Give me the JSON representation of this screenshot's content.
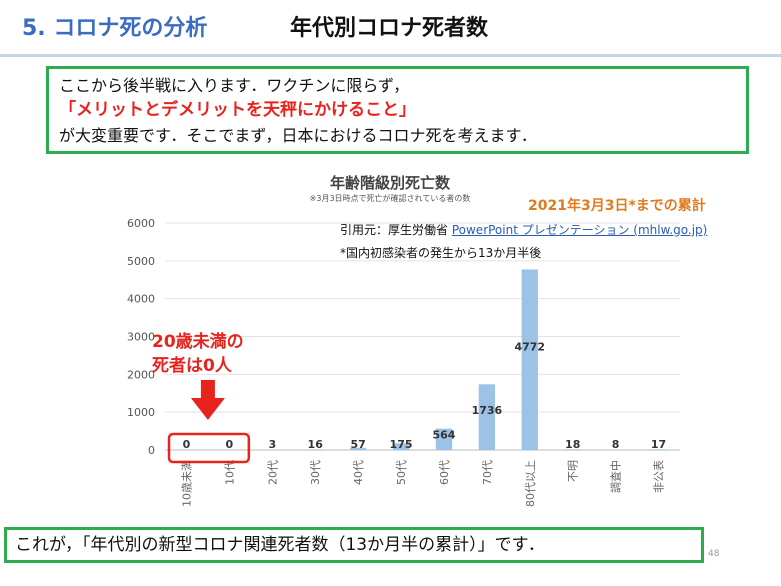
{
  "header": {
    "title_num": "5. コロナ死の分析",
    "title_sub": "年代別コロナ死者数"
  },
  "intro": {
    "line1": "ここから後半戦に入ります．ワクチンに限らず，",
    "line2": "「メリットとデメリットを天秤にかけること」",
    "line3": "が大変重要です．そこでまず，日本におけるコロナ死を考えます．"
  },
  "annotations": {
    "cumulative": "2021年3月3日*までの累計",
    "source_label": "引用元：厚生労働省",
    "source_link": "PowerPoint プレゼンテーション (mhlw.go.jp)",
    "note": "*国内初感染者の発生から13か月半後",
    "callout_line1": "20歳未満の",
    "callout_line2": "死者は0人"
  },
  "footer": {
    "text": "これが，「年代別の新型コロナ関連死者数（13か月半の累計）」です．",
    "page": "48"
  },
  "colors": {
    "bar": "#9cc2e5",
    "highlight": "#e8231e",
    "border": "#2eac4f",
    "accent": "#e07b20"
  },
  "chart_data": {
    "type": "bar",
    "title": "年齢階級別死亡数",
    "subtitle": "※3月3日時点で死亡が確認されている者の数",
    "categories": [
      "10歳未満",
      "10代",
      "20代",
      "30代",
      "40代",
      "50代",
      "60代",
      "70代",
      "80代以上",
      "不明",
      "調査中",
      "非公表"
    ],
    "values": [
      0,
      0,
      3,
      16,
      57,
      175,
      564,
      1736,
      4772,
      18,
      8,
      17
    ],
    "yticks": [
      0,
      1000,
      2000,
      3000,
      4000,
      5000,
      6000
    ],
    "ylim": [
      0,
      6000
    ],
    "grid": true
  }
}
